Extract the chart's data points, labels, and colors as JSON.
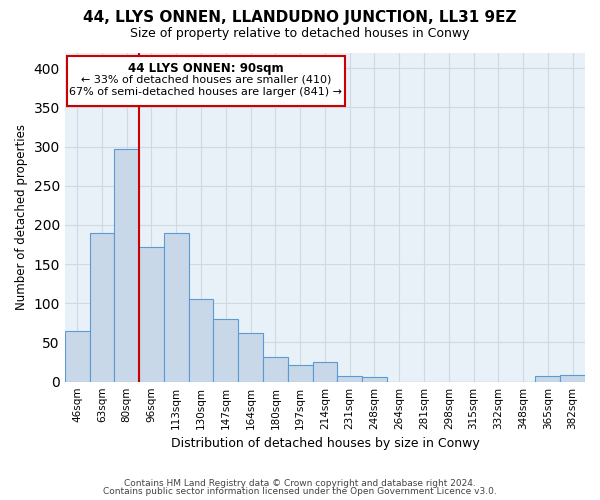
{
  "title": "44, LLYS ONNEN, LLANDUDNO JUNCTION, LL31 9EZ",
  "subtitle": "Size of property relative to detached houses in Conwy",
  "xlabel": "Distribution of detached houses by size in Conwy",
  "ylabel": "Number of detached properties",
  "bar_color": "#c8d8e8",
  "bar_edge_color": "#5b9bd5",
  "vline_color": "#cc0000",
  "categories": [
    "46sqm",
    "63sqm",
    "80sqm",
    "96sqm",
    "113sqm",
    "130sqm",
    "147sqm",
    "164sqm",
    "180sqm",
    "197sqm",
    "214sqm",
    "231sqm",
    "248sqm",
    "264sqm",
    "281sqm",
    "298sqm",
    "315sqm",
    "332sqm",
    "348sqm",
    "365sqm",
    "382sqm"
  ],
  "values": [
    65,
    190,
    297,
    172,
    190,
    106,
    80,
    62,
    31,
    21,
    25,
    7,
    6,
    0,
    0,
    0,
    0,
    0,
    0,
    7,
    8
  ],
  "vline_position": 2.5,
  "ylim": [
    0,
    420
  ],
  "yticks": [
    0,
    50,
    100,
    150,
    200,
    250,
    300,
    350,
    400
  ],
  "annotation_title": "44 LLYS ONNEN: 90sqm",
  "annotation_line1": "← 33% of detached houses are smaller (410)",
  "annotation_line2": "67% of semi-detached houses are larger (841) →",
  "annotation_box_color": "#ffffff",
  "annotation_box_edge": "#cc0000",
  "footer_line1": "Contains HM Land Registry data © Crown copyright and database right 2024.",
  "footer_line2": "Contains public sector information licensed under the Open Government Licence v3.0.",
  "background_color": "#ffffff",
  "grid_color": "#d0d8e0"
}
